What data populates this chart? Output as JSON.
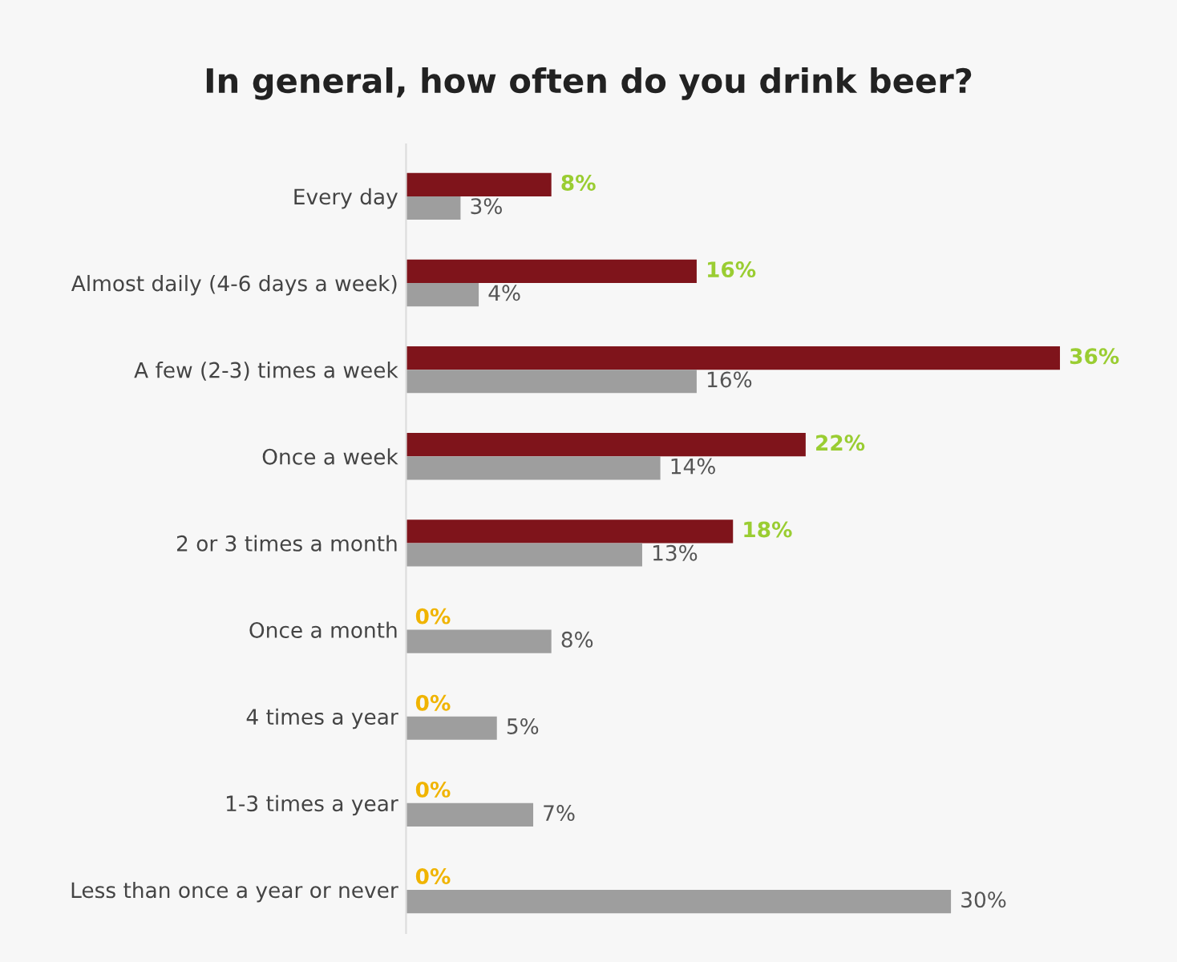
{
  "chart_data": {
    "type": "bar",
    "orientation": "horizontal",
    "title": "In general, how often do you drink beer?",
    "categories": [
      "Every day",
      "Almost daily (4-6 days a week)",
      "A few (2-3) times a week",
      "Once a week",
      "2 or 3 times a month",
      "Once a month",
      "4 times a year",
      "1-3 times a year",
      "Less than once a year or never"
    ],
    "series": [
      {
        "color": "#7f141b",
        "values": [
          8,
          16,
          36,
          22,
          18,
          0,
          0,
          0,
          0
        ],
        "value_labels": [
          "8%",
          "16%",
          "36%",
          "22%",
          "18%",
          "0%",
          "0%",
          "0%",
          "0%"
        ]
      },
      {
        "color": "#9e9e9e",
        "values": [
          3,
          4,
          16,
          14,
          13,
          8,
          5,
          7,
          30
        ],
        "value_labels": [
          "3%",
          "4%",
          "16%",
          "14%",
          "13%",
          "8%",
          "5%",
          "7%",
          "30%"
        ]
      }
    ],
    "grid": false,
    "legend": false
  }
}
